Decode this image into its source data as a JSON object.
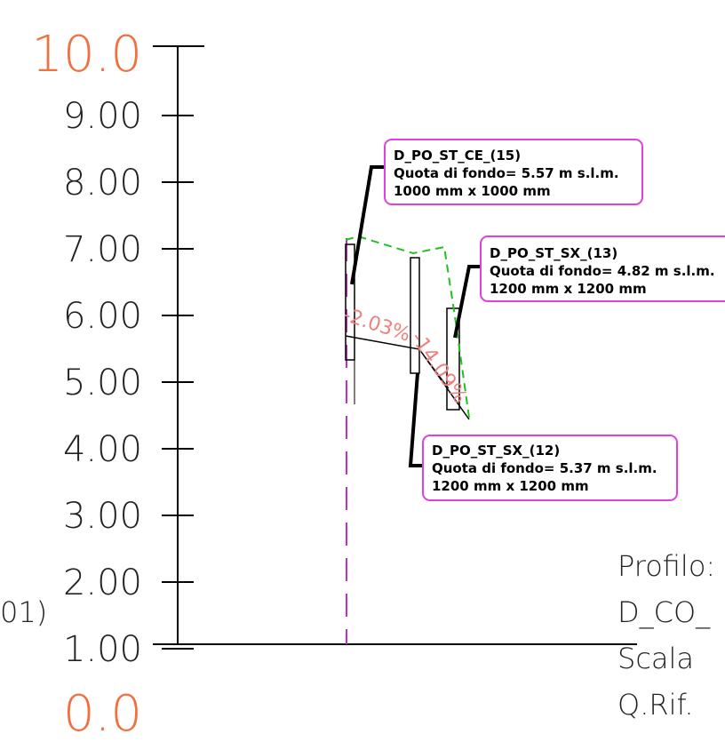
{
  "axis": {
    "ticks": [
      "10.0",
      "9.00",
      "8.00",
      "7.00",
      "6.00",
      "5.00",
      "4.00",
      "3.00",
      "2.00",
      "1.00",
      "0.0"
    ],
    "major_color": "#f07040"
  },
  "callouts": [
    {
      "name": "D_PO_ST_CE_(15)",
      "line2": "Quota di fondo= 5.57 m s.l.m.",
      "line3": "1000 mm x 1000 mm"
    },
    {
      "name": "D_PO_ST_SX_(13)",
      "line2": "Quota di fondo= 4.82 m s.l.m.",
      "line3": "1200 mm x 1200 mm"
    },
    {
      "name": "D_PO_ST_SX_(12)",
      "line2": "Quota di fondo= 5.37 m s.l.m.",
      "line3": "1200 mm x 1200 mm"
    }
  ],
  "slopes": [
    "-2.03%",
    "-14.09%"
  ],
  "left_fragment": "01)",
  "profile_info": {
    "line1": "Profilo:",
    "line2": "D_CO_",
    "line3": "Scala",
    "line4": "Q.Rif."
  },
  "colors": {
    "callout_border": "#e040e0",
    "terrain_line": "#20c020",
    "axis_marker": "#c030c0",
    "slope_label": "#f08080"
  }
}
